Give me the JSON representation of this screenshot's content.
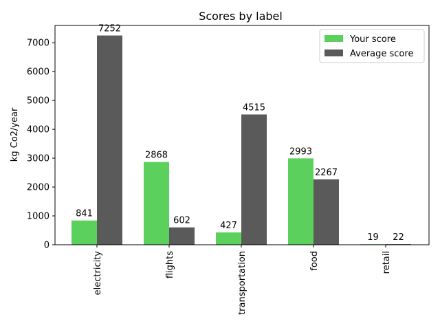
{
  "chart_data": {
    "type": "bar",
    "title": "Scores by label",
    "xlabel": "",
    "ylabel": "kg Co2/year",
    "categories": [
      "electricity",
      "flights",
      "transportation",
      "food",
      "retail"
    ],
    "series": [
      {
        "name": "Your score",
        "values": [
          841,
          2868,
          427,
          2993,
          19
        ],
        "color": "#5cd05c"
      },
      {
        "name": "Average score",
        "values": [
          7252,
          602,
          4515,
          2267,
          22
        ],
        "color": "#5a5a5a"
      }
    ],
    "ylim": [
      0,
      7600
    ],
    "yticks": [
      0,
      1000,
      2000,
      3000,
      4000,
      5000,
      6000,
      7000
    ],
    "grid": false,
    "legend_position": "top-right"
  }
}
